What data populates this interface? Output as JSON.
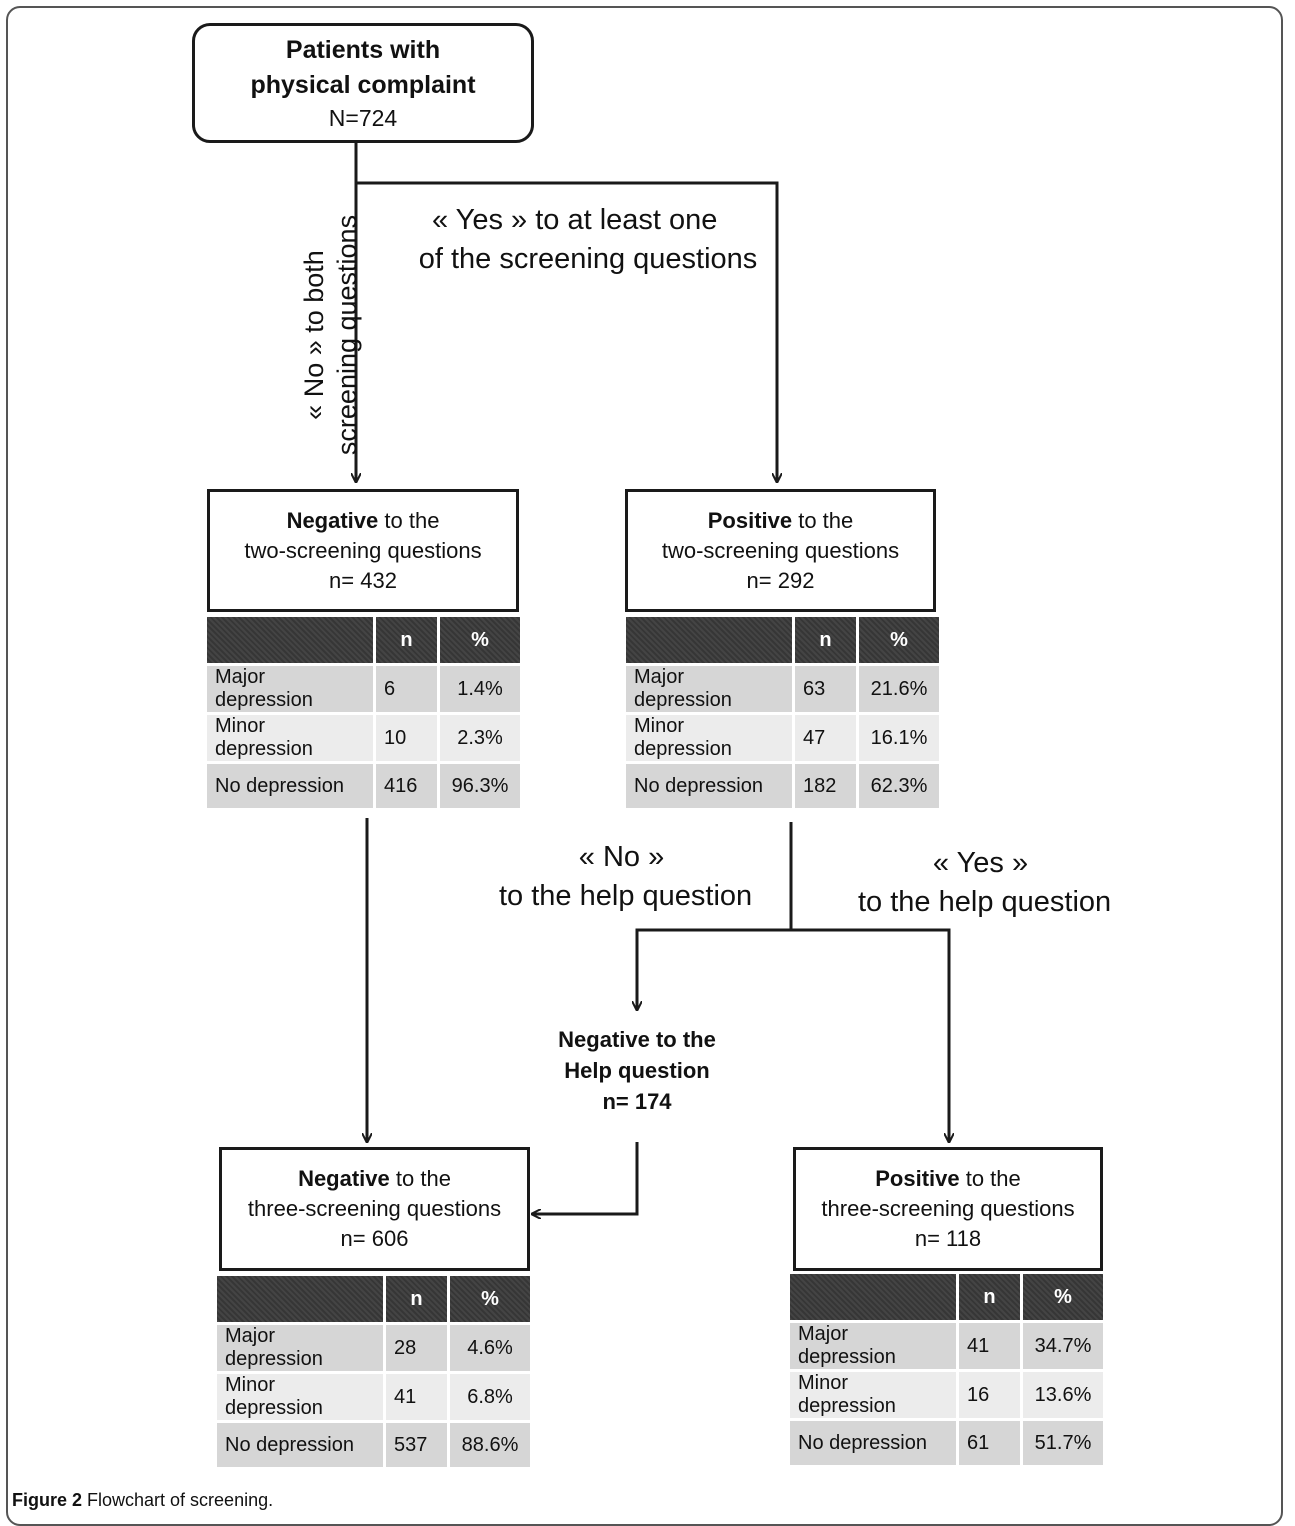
{
  "root": {
    "line1": "Patients with",
    "line2": "physical complaint",
    "count": "N=724"
  },
  "edge_no_both": {
    "line1": "« No » to both",
    "line2": "screening questions"
  },
  "edge_yes_one": {
    "line1": "« Yes » to at least one",
    "line2": "of the screening questions"
  },
  "neg_two": {
    "bold": "Negative",
    "rest": " to the",
    "line2": "two-screening questions",
    "count": "n= 432",
    "table": {
      "headers": [
        "",
        "n",
        "%"
      ],
      "rows": [
        [
          "Major depression",
          "6",
          "1.4%"
        ],
        [
          "Minor depression",
          "10",
          "2.3%"
        ],
        [
          "No depression",
          "416",
          "96.3%"
        ]
      ]
    }
  },
  "pos_two": {
    "bold": "Positive",
    "rest": " to the",
    "line2": "two-screening questions",
    "count": "n= 292",
    "table": {
      "headers": [
        "",
        "n",
        "%"
      ],
      "rows": [
        [
          "Major depression",
          "63",
          "21.6%"
        ],
        [
          "Minor depression",
          "47",
          "16.1%"
        ],
        [
          "No depression",
          "182",
          "62.3%"
        ]
      ]
    }
  },
  "edge_no_help": {
    "line1": "« No »",
    "line2": "to the help question"
  },
  "edge_yes_help": {
    "line1": "« Yes »",
    "line2": "to the help question"
  },
  "neg_help": {
    "line1": "Negative to the",
    "line2": "Help question",
    "count": "n= 174"
  },
  "neg_three": {
    "bold": "Negative",
    "rest": " to the",
    "line2": "three-screening questions",
    "count": "n= 606",
    "table": {
      "headers": [
        "",
        "n",
        "%"
      ],
      "rows": [
        [
          "Major depression",
          "28",
          "4.6%"
        ],
        [
          "Minor depression",
          "41",
          "6.8%"
        ],
        [
          "No depression",
          "537",
          "88.6%"
        ]
      ]
    }
  },
  "pos_three": {
    "bold": "Positive",
    "rest": " to the",
    "line2": "three-screening questions",
    "count": "n= 118",
    "table": {
      "headers": [
        "",
        "n",
        "%"
      ],
      "rows": [
        [
          "Major depression",
          "41",
          "34.7%"
        ],
        [
          "Minor depression",
          "16",
          "13.6%"
        ],
        [
          "No depression",
          "61",
          "51.7%"
        ]
      ]
    }
  },
  "caption": {
    "label": "Figure 2",
    "text": " Flowchart of screening."
  }
}
